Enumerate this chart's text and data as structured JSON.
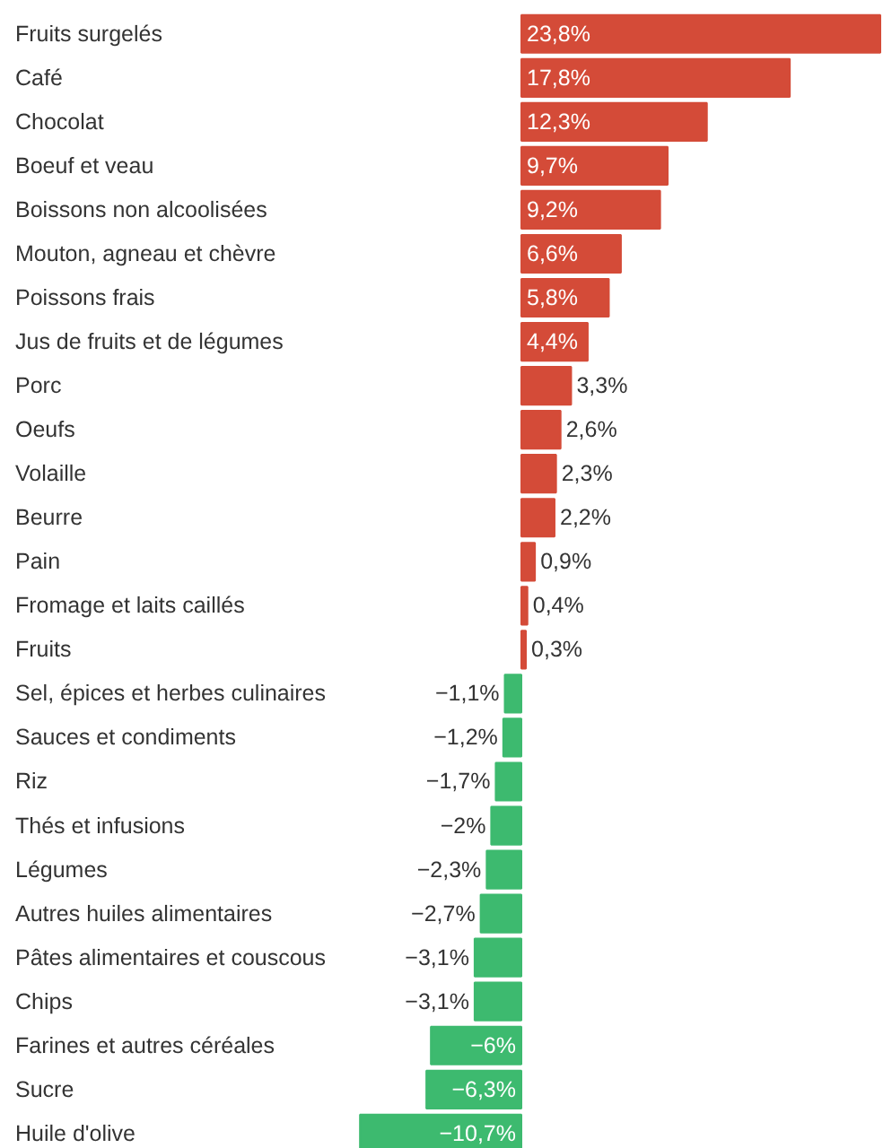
{
  "chart_data": {
    "type": "bar",
    "orientation": "horizontal",
    "categories": [
      "Fruits surgelés",
      "Café",
      "Chocolat",
      "Boeuf et veau",
      "Boissons non alcoolisées",
      "Mouton, agneau et chèvre",
      "Poissons frais",
      "Jus de fruits et de légumes",
      "Porc",
      "Oeufs",
      "Volaille",
      "Beurre",
      "Pain",
      "Fromage et laits caillés",
      "Fruits",
      "Sel, épices et herbes culinaires",
      "Sauces et condiments",
      "Riz",
      "Thés et infusions",
      "Légumes",
      "Autres huiles alimentaires",
      "Pâtes alimentaires et couscous",
      "Chips",
      "Farines et autres céréales",
      "Sucre",
      "Huile d'olive"
    ],
    "values": [
      23.8,
      17.8,
      12.3,
      9.7,
      9.2,
      6.6,
      5.8,
      4.4,
      3.3,
      2.6,
      2.3,
      2.2,
      0.9,
      0.4,
      0.3,
      -1.1,
      -1.2,
      -1.7,
      -2,
      -2.3,
      -2.7,
      -3.1,
      -3.1,
      -6,
      -6.3,
      -10.7
    ],
    "colors": [
      "#d44b38",
      "#d44b38",
      "#d44b38",
      "#d44b38",
      "#d44b38",
      "#d44b38",
      "#d44b38",
      "#d44b38",
      "#d44b38",
      "#d44b38",
      "#d44b38",
      "#d44b38",
      "#d44b38",
      "#d44b38",
      "#d44b38",
      "#3dba6f",
      "#3dba6f",
      "#3dba6f",
      "#3dba6f",
      "#3dba6f",
      "#3dba6f",
      "#3dba6f",
      "#3dba6f",
      "#3dba6f",
      "#3dba6f",
      "#3dba6f"
    ],
    "value_labels": [
      "23,8%",
      "17,8%",
      "12,3%",
      "9,7%",
      "9,2%",
      "6,6%",
      "5,8%",
      "4,4%",
      "3,3%",
      "2,6%",
      "2,3%",
      "2,2%",
      "0,9%",
      "0,4%",
      "0,3%",
      "−1,1%",
      "−1,2%",
      "−1,7%",
      "−2%",
      "−2,3%",
      "−2,7%",
      "−3,1%",
      "−3,1%",
      "−6%",
      "−6,3%",
      "−10,7%"
    ],
    "grid": false
  }
}
